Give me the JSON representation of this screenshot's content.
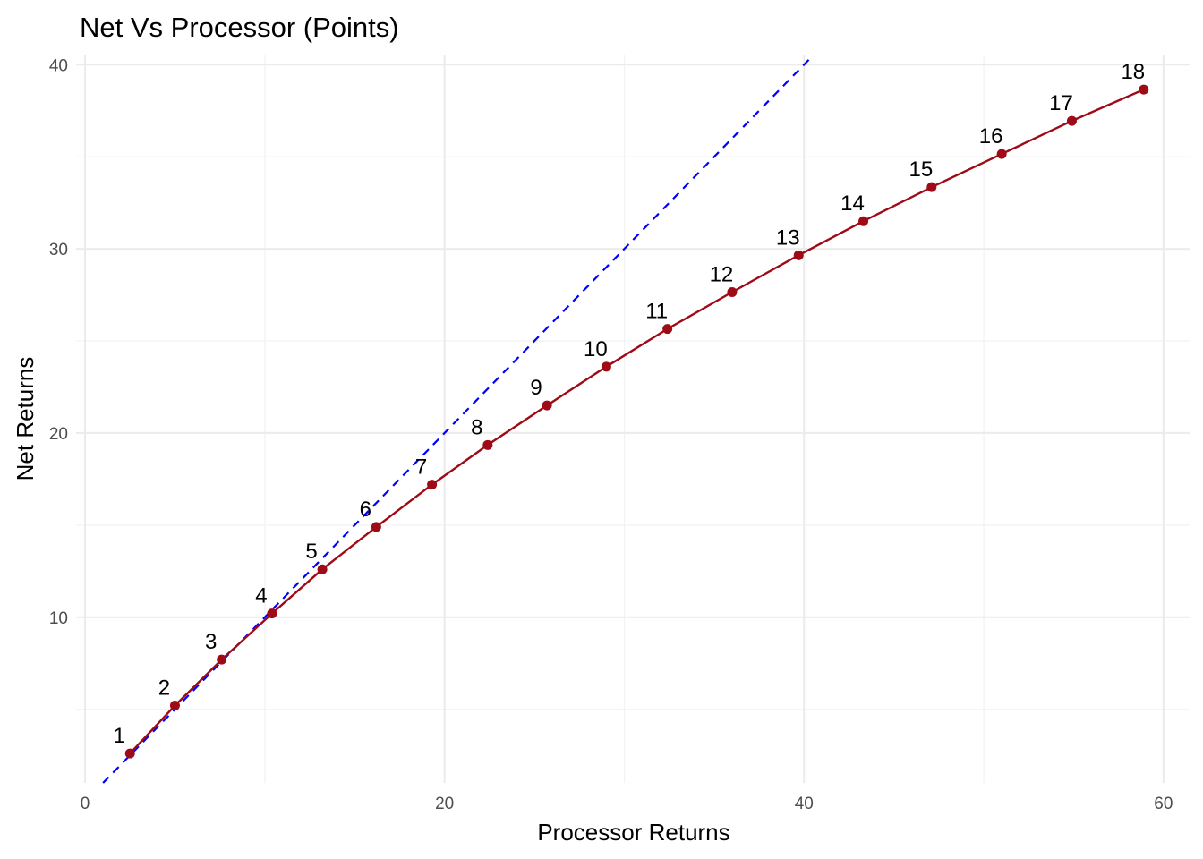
{
  "chart_data": {
    "type": "line",
    "title": "Net Vs Processor (Points)",
    "xlabel": "Processor Returns",
    "ylabel": "Net Returns",
    "xlim": [
      -0.5,
      61.5
    ],
    "ylim": [
      1.0,
      40.5
    ],
    "xticks": [
      0,
      20,
      40,
      60
    ],
    "yticks": [
      10,
      20,
      30,
      40
    ],
    "grid": true,
    "legend": "none",
    "series": [
      {
        "color": "#9e0a16",
        "labels": [
          "1",
          "2",
          "3",
          "4",
          "5",
          "6",
          "7",
          "8",
          "9",
          "10",
          "11",
          "12",
          "13",
          "14",
          "15",
          "16",
          "17",
          "18"
        ],
        "x": [
          2.5,
          5.0,
          7.6,
          10.4,
          13.2,
          16.2,
          19.3,
          22.4,
          25.7,
          29.0,
          32.4,
          36.0,
          39.7,
          43.3,
          47.1,
          51.0,
          54.9,
          58.9
        ],
        "y": [
          2.6,
          5.2,
          7.7,
          10.2,
          12.6,
          14.9,
          17.2,
          19.35,
          21.5,
          23.6,
          25.65,
          27.65,
          29.65,
          31.5,
          33.35,
          35.15,
          36.95,
          38.65
        ]
      }
    ],
    "reference_line": {
      "type": "y=x",
      "style": "dashed",
      "color": "#0000ff"
    }
  }
}
